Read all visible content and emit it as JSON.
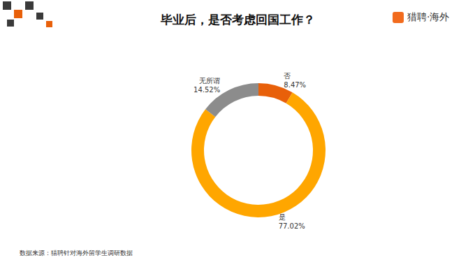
{
  "chart_data": {
    "type": "donut",
    "title": "毕业后，是否考虑回国工作？",
    "categories": [
      "否",
      "是",
      "无所谓"
    ],
    "values": [
      8.47,
      77.02,
      14.52
    ],
    "value_labels": [
      "8.47%",
      "77.02%",
      "14.52%"
    ],
    "colors": [
      "#e8600a",
      "#ffa600",
      "#8c8c8c"
    ],
    "data_labels": true
  },
  "logo": "猎聘·海外",
  "source": "数据来源：猎聘针对海外留学生调研数据"
}
